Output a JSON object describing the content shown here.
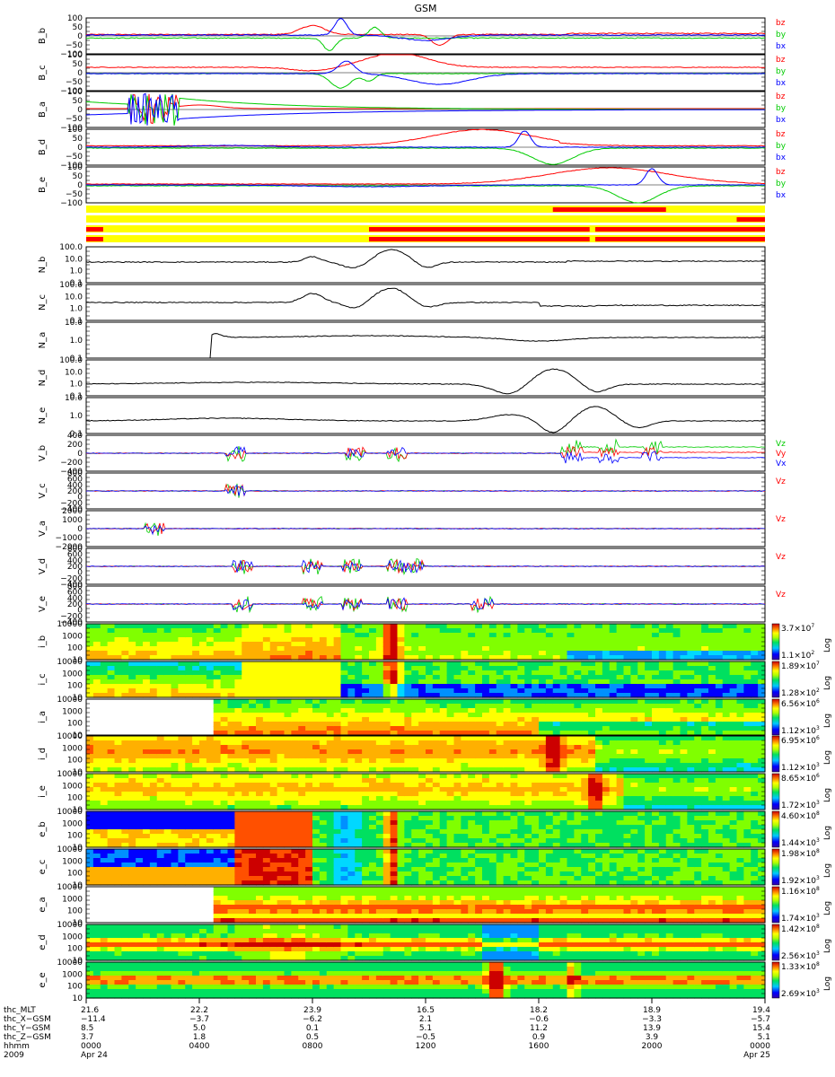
{
  "title": "GSM",
  "chart_data": {
    "type": "line",
    "title": "GSM",
    "time_range": [
      "2009 Apr 24 0000",
      "2009 Apr 25 0000"
    ],
    "x_tick_labels": [
      "0000",
      "0400",
      "0800",
      "1200",
      "1600",
      "2000",
      "0000"
    ],
    "x_ticks_hours": [
      0,
      4,
      8,
      12,
      16,
      20,
      24
    ],
    "date_labels": [
      "Apr 24",
      "Apr 25"
    ],
    "year_label": "2009",
    "b_panels": [
      {
        "name": "B_b",
        "range": [
          -100,
          100
        ],
        "tick_labels": [
          "100",
          "50",
          "0",
          "−50",
          "−100"
        ],
        "tick_values": [
          100,
          50,
          0,
          -50,
          -100
        ],
        "series": [
          {
            "name": "bz",
            "color": "#ff0000"
          },
          {
            "name": "by",
            "color": "#00cc00"
          },
          {
            "name": "bx",
            "color": "#0000ff"
          }
        ]
      },
      {
        "name": "B_c",
        "range": [
          -100,
          100
        ],
        "tick_labels": [
          "100",
          "50",
          "0",
          "−50",
          "−100"
        ],
        "tick_values": [
          100,
          50,
          0,
          -50,
          -100
        ],
        "series": [
          {
            "name": "bz",
            "color": "#ff0000"
          },
          {
            "name": "by",
            "color": "#00cc00"
          },
          {
            "name": "bx",
            "color": "#0000ff"
          }
        ]
      },
      {
        "name": "B_a",
        "range": [
          -100,
          100
        ],
        "tick_labels": [
          "100",
          "50",
          "0",
          "−50",
          "−100"
        ],
        "tick_values": [
          100,
          50,
          0,
          -50,
          -100
        ],
        "series": [
          {
            "name": "bz",
            "color": "#ff0000"
          },
          {
            "name": "by",
            "color": "#00cc00"
          },
          {
            "name": "bx",
            "color": "#0000ff"
          }
        ]
      },
      {
        "name": "B_d",
        "range": [
          -100,
          100
        ],
        "tick_labels": [
          "100",
          "50",
          "0",
          "−50",
          "−100"
        ],
        "tick_values": [
          100,
          50,
          0,
          -50,
          -100
        ],
        "series": [
          {
            "name": "bz",
            "color": "#ff0000"
          },
          {
            "name": "by",
            "color": "#00cc00"
          },
          {
            "name": "bx",
            "color": "#0000ff"
          }
        ]
      },
      {
        "name": "B_e",
        "range": [
          -100,
          100
        ],
        "tick_labels": [
          "100",
          "50",
          "0",
          "−50",
          "−100"
        ],
        "tick_values": [
          100,
          50,
          0,
          -50,
          -100
        ],
        "series": [
          {
            "name": "bz",
            "color": "#ff0000"
          },
          {
            "name": "by",
            "color": "#00cc00"
          },
          {
            "name": "bx",
            "color": "#0000ff"
          }
        ]
      }
    ],
    "mode_bars": [
      {
        "start": 0,
        "end": 24
      },
      {
        "start": 0,
        "end": 24
      },
      {
        "start": 0,
        "end": 24
      },
      {
        "start": 0,
        "end": 24
      }
    ],
    "n_panels": [
      {
        "name": "N_b",
        "log": true,
        "tick_labels": [
          "100.0",
          "10.0",
          "1.0",
          "0.1"
        ],
        "tick_values": [
          100,
          10,
          1,
          0.1
        ]
      },
      {
        "name": "N_c",
        "log": true,
        "tick_labels": [
          "100.0",
          "10.0",
          "1.0",
          "0.1"
        ],
        "tick_values": [
          100,
          10,
          1,
          0.1
        ]
      },
      {
        "name": "N_a",
        "log": true,
        "tick_labels": [
          "10.0",
          "1.0",
          "0.1"
        ],
        "tick_values": [
          10,
          1,
          0.1
        ]
      },
      {
        "name": "N_d",
        "log": true,
        "tick_labels": [
          "100.0",
          "10.0",
          "1.0",
          "0.1"
        ],
        "tick_values": [
          100,
          10,
          1,
          0.1
        ]
      },
      {
        "name": "N_e",
        "log": true,
        "tick_labels": [
          "10.0",
          "1.0",
          "0.1"
        ],
        "tick_values": [
          10,
          1,
          0.1
        ]
      }
    ],
    "v_panels": [
      {
        "name": "V_b",
        "range": [
          -400,
          400
        ],
        "tick_labels": [
          "400",
          "200",
          "0",
          "−200",
          "−400"
        ],
        "tick_values": [
          400,
          200,
          0,
          -200,
          -400
        ],
        "legend": [
          "Vz",
          "Vy",
          "Vx"
        ],
        "legend_colors": [
          "#00cc00",
          "#ff0000",
          "#0000ff"
        ]
      },
      {
        "name": "V_c",
        "range": [
          -400,
          800
        ],
        "tick_labels": [
          "800",
          "600",
          "400",
          "200",
          "0",
          "−200",
          "−400"
        ],
        "tick_values": [
          800,
          600,
          400,
          200,
          0,
          -200,
          -400
        ],
        "legend": [
          "Vz"
        ],
        "legend_colors": [
          "#ff0000"
        ]
      },
      {
        "name": "V_a",
        "range": [
          -2000,
          2000
        ],
        "tick_labels": [
          "2000",
          "1000",
          "0",
          "−1000",
          "−2000"
        ],
        "tick_values": [
          2000,
          1000,
          0,
          -1000,
          -2000
        ],
        "legend": [
          "Vz"
        ],
        "legend_colors": [
          "#ff0000"
        ]
      },
      {
        "name": "V_d",
        "range": [
          -400,
          800
        ],
        "tick_labels": [
          "800",
          "600",
          "400",
          "200",
          "0",
          "−200",
          "−400"
        ],
        "tick_values": [
          800,
          600,
          400,
          200,
          0,
          -200,
          -400
        ],
        "legend": [
          "Vz"
        ],
        "legend_colors": [
          "#ff0000"
        ]
      },
      {
        "name": "V_e",
        "range": [
          -400,
          800
        ],
        "tick_labels": [
          "800",
          "600",
          "400",
          "200",
          "0",
          "−200",
          "−400"
        ],
        "tick_values": [
          800,
          600,
          400,
          200,
          0,
          -200,
          -400
        ],
        "legend": [
          "Vz"
        ],
        "legend_colors": [
          "#ff0000"
        ]
      }
    ],
    "spectrograms": [
      {
        "name": "i_b",
        "y_tick_labels": [
          "10000",
          "1000",
          "100",
          "10"
        ],
        "y_tick_values": [
          10000,
          1000,
          100,
          10
        ],
        "cbar_top": "3.7×10",
        "cbar_top_exp": "7",
        "cbar_bottom": "1.1×10",
        "cbar_bottom_exp": "2",
        "cbar_label": "Log"
      },
      {
        "name": "i_c",
        "y_tick_labels": [
          "10000",
          "1000",
          "100",
          "10"
        ],
        "y_tick_values": [
          10000,
          1000,
          100,
          10
        ],
        "cbar_top": "1.89×10",
        "cbar_top_exp": "7",
        "cbar_bottom": "1.28×10",
        "cbar_bottom_exp": "2",
        "cbar_label": "Log"
      },
      {
        "name": "i_a",
        "y_tick_labels": [
          "10000",
          "1000",
          "100",
          "10"
        ],
        "y_tick_values": [
          10000,
          1000,
          100,
          10
        ],
        "cbar_top": "6.56×10",
        "cbar_top_exp": "6",
        "cbar_bottom": "1.12×10",
        "cbar_bottom_exp": "3",
        "cbar_label": "Log"
      },
      {
        "name": "i_d",
        "y_tick_labels": [
          "10000",
          "1000",
          "100",
          "10"
        ],
        "y_tick_values": [
          10000,
          1000,
          100,
          10
        ],
        "cbar_top": "6.95×10",
        "cbar_top_exp": "6",
        "cbar_bottom": "1.12×10",
        "cbar_bottom_exp": "3",
        "cbar_label": "Log"
      },
      {
        "name": "i_e",
        "y_tick_labels": [
          "10000",
          "1000",
          "100",
          "10"
        ],
        "y_tick_values": [
          10000,
          1000,
          100,
          10
        ],
        "cbar_top": "8.65×10",
        "cbar_top_exp": "6",
        "cbar_bottom": "1.72×10",
        "cbar_bottom_exp": "3",
        "cbar_label": "Log"
      },
      {
        "name": "e_b",
        "y_tick_labels": [
          "10000",
          "1000",
          "100",
          "10"
        ],
        "y_tick_values": [
          10000,
          1000,
          100,
          10
        ],
        "cbar_top": "4.60×10",
        "cbar_top_exp": "8",
        "cbar_bottom": "1.44×10",
        "cbar_bottom_exp": "3",
        "cbar_label": "Log"
      },
      {
        "name": "e_c",
        "y_tick_labels": [
          "10000",
          "1000",
          "100",
          "10"
        ],
        "y_tick_values": [
          10000,
          1000,
          100,
          10
        ],
        "cbar_top": "1.98×10",
        "cbar_top_exp": "8",
        "cbar_bottom": "1.92×10",
        "cbar_bottom_exp": "3",
        "cbar_label": "Log"
      },
      {
        "name": "e_a",
        "y_tick_labels": [
          "10000",
          "1000",
          "100",
          "10"
        ],
        "y_tick_values": [
          10000,
          1000,
          100,
          10
        ],
        "cbar_top": "1.16×10",
        "cbar_top_exp": "8",
        "cbar_bottom": "1.74×10",
        "cbar_bottom_exp": "3",
        "cbar_label": "Log"
      },
      {
        "name": "e_d",
        "y_tick_labels": [
          "10000",
          "1000",
          "100",
          "10"
        ],
        "y_tick_values": [
          10000,
          1000,
          100,
          10
        ],
        "cbar_top": "1.42×10",
        "cbar_top_exp": "8",
        "cbar_bottom": "2.56×10",
        "cbar_bottom_exp": "3",
        "cbar_label": "Log"
      },
      {
        "name": "e_e",
        "y_tick_labels": [
          "10000",
          "1000",
          "100",
          "10"
        ],
        "y_tick_values": [
          10000,
          1000,
          100,
          10
        ],
        "cbar_top": "1.33×10",
        "cbar_top_exp": "8",
        "cbar_bottom": "2.69×10",
        "cbar_bottom_exp": "3",
        "cbar_label": "Log"
      }
    ],
    "ephemeris": {
      "rows": [
        {
          "label": "thc_MLT",
          "values": [
            "21.6",
            "22.2",
            "23.9",
            "16.5",
            "18.2",
            "18.9",
            "19.4"
          ]
        },
        {
          "label": "thc_X−GSM",
          "values": [
            "−11.4",
            "−3.7",
            "−6.2",
            "2.1",
            "−0.6",
            "−3.3",
            "−5.7"
          ]
        },
        {
          "label": "thc_Y−GSM",
          "values": [
            "8.5",
            "5.0",
            "0.1",
            "5.1",
            "11.2",
            "13.9",
            "15.4"
          ]
        },
        {
          "label": "thc_Z−GSM",
          "values": [
            "3.7",
            "1.8",
            "0.5",
            "−0.5",
            "0.9",
            "3.9",
            "5.1"
          ]
        },
        {
          "label": "hhmm",
          "values": [
            "0000",
            "0400",
            "0800",
            "1200",
            "1600",
            "2000",
            "0000"
          ]
        },
        {
          "label": "2009",
          "values": [
            "Apr 24",
            "",
            "",
            "",
            "",
            "",
            "Apr 25"
          ]
        }
      ]
    }
  }
}
